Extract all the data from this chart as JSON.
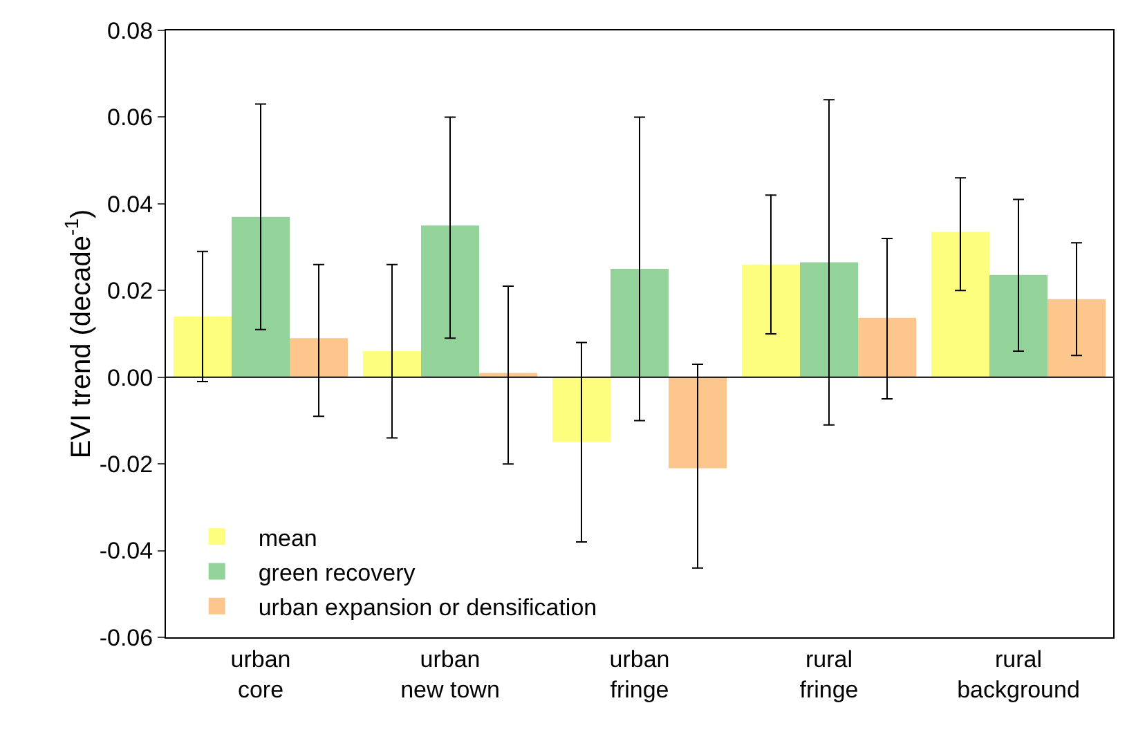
{
  "chart_data": {
    "type": "bar",
    "ylabel": "EVI trend (decade$^{-1}$)",
    "categories": [
      "urban core",
      "urban new town",
      "urban fringe",
      "rural fringe",
      "rural background"
    ],
    "series": [
      {
        "name": "mean",
        "color": "#fdfd7e",
        "values": [
          0.014,
          0.006,
          -0.015,
          0.026,
          0.0335
        ],
        "errors": [
          [
            -0.001,
            0.029
          ],
          [
            -0.014,
            0.026
          ],
          [
            -0.038,
            0.008
          ],
          [
            0.01,
            0.042
          ],
          [
            0.02,
            0.046
          ]
        ]
      },
      {
        "name": "green recovery",
        "color": "#93d39a",
        "values": [
          0.037,
          0.035,
          0.025,
          0.0265,
          0.0236
        ],
        "errors": [
          [
            0.011,
            0.063
          ],
          [
            0.009,
            0.06
          ],
          [
            -0.01,
            0.06
          ],
          [
            -0.011,
            0.064
          ],
          [
            0.006,
            0.041
          ]
        ]
      },
      {
        "name": "urban expansion or densification",
        "color": "#fdc68d",
        "values": [
          0.009,
          0.001,
          -0.021,
          0.0137,
          0.018
        ],
        "errors": [
          [
            -0.009,
            0.026
          ],
          [
            -0.02,
            0.021
          ],
          [
            -0.044,
            0.003
          ],
          [
            -0.005,
            0.032
          ],
          [
            0.005,
            0.031
          ]
        ]
      }
    ],
    "ylim": [
      -0.06,
      0.08
    ],
    "yticks": [
      0.08,
      0.06,
      0.04,
      0.02,
      {
        "value": 0,
        "label": "0.00"
      },
      -0.02,
      -0.04,
      -0.06
    ],
    "ref_lines": [
      {
        "axis": "y",
        "value": 0,
        "color": "#000000"
      }
    ],
    "grid": false,
    "legend": "bottom left"
  }
}
